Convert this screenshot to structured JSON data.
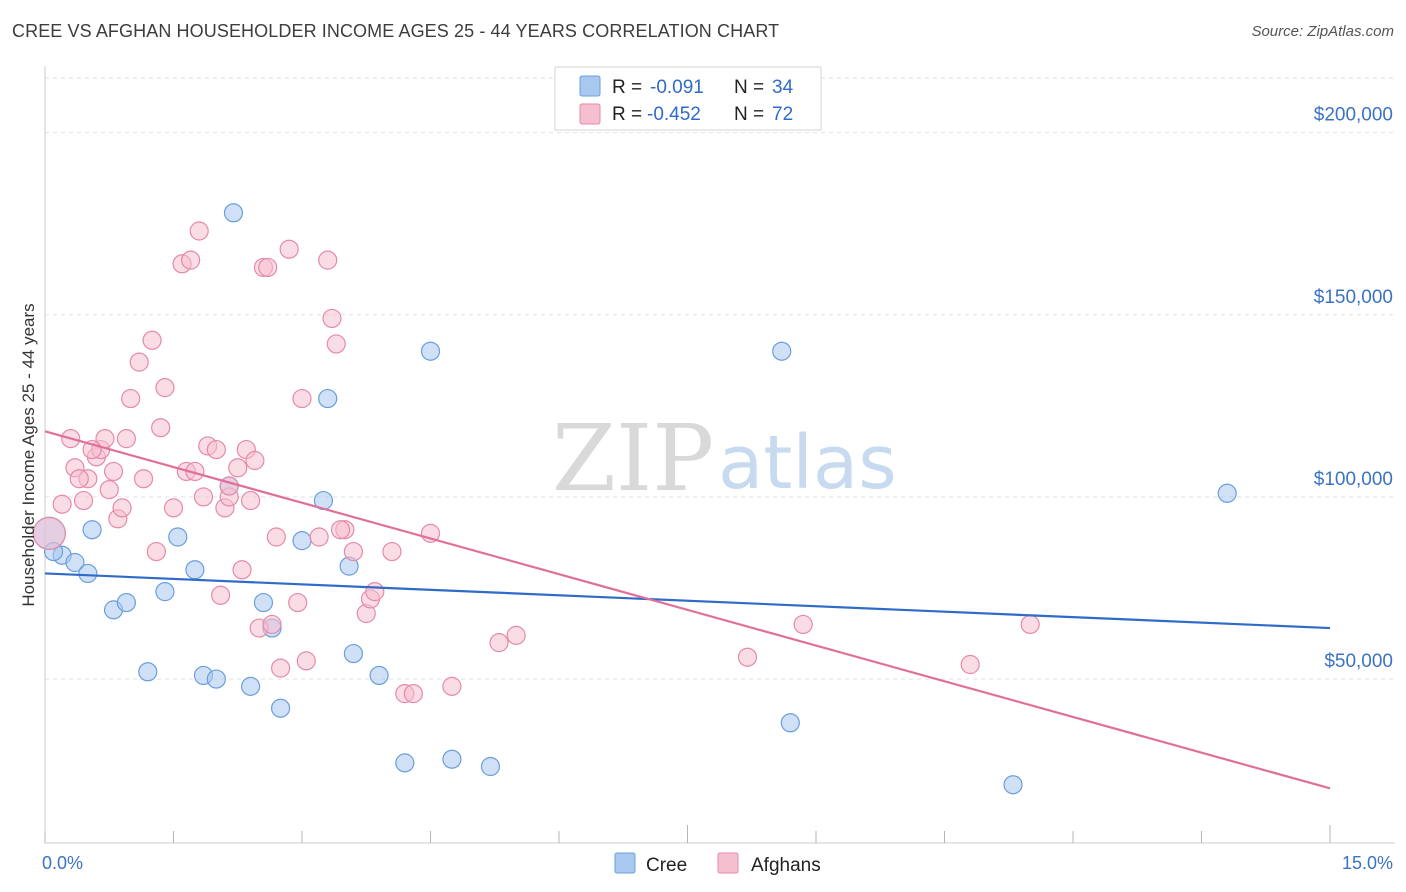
{
  "header": {
    "title": "CREE VS AFGHAN HOUSEHOLDER INCOME AGES 25 - 44 YEARS CORRELATION CHART",
    "source": "Source: ZipAtlas.com"
  },
  "watermark": {
    "zip": "ZIP",
    "atlas": "atlas"
  },
  "legend_top": {
    "rows": [
      {
        "r_label": "R =",
        "r_value": "-0.091",
        "n_label": "N =",
        "n_value": "34",
        "color": "#a9c8f0",
        "stroke": "#6a9edb"
      },
      {
        "r_label": "R =",
        "r_value": "-0.452",
        "n_label": "N =",
        "n_value": "72",
        "color": "#f6bfd0",
        "stroke": "#e58aa8"
      }
    ]
  },
  "legend_bottom": {
    "items": [
      {
        "label": "Cree",
        "color": "#a9c8f0",
        "stroke": "#6a9edb"
      },
      {
        "label": "Afghans",
        "color": "#f6bfd0",
        "stroke": "#e58aa8"
      }
    ]
  },
  "chart_data": {
    "type": "scatter",
    "title": "CREE VS AFGHAN HOUSEHOLDER INCOME AGES 25 - 44 YEARS CORRELATION CHART",
    "xlabel": "",
    "ylabel": "Householder Income Ages 25 - 44 years",
    "xlim": [
      0,
      15
    ],
    "ylim": [
      5000,
      215000
    ],
    "x_tick_labels": [
      "0.0%",
      "15.0%"
    ],
    "y_ticks": [
      50000,
      100000,
      150000,
      200000
    ],
    "y_tick_labels": [
      "$50,000",
      "$100,000",
      "$150,000",
      "$200,000"
    ],
    "grid": true,
    "legend_placement": "top-center and bottom",
    "series": [
      {
        "name": "Cree",
        "color": "#a9c8f0",
        "stroke": "#6a9edb",
        "line_color": "#2f6bc8",
        "trend": [
          [
            0,
            79000
          ],
          [
            15,
            64000
          ]
        ],
        "points": [
          [
            0.05,
            90000
          ],
          [
            0.2,
            84000
          ],
          [
            0.35,
            82000
          ],
          [
            0.5,
            79000
          ],
          [
            0.55,
            91000
          ],
          [
            0.8,
            69000
          ],
          [
            0.95,
            71000
          ],
          [
            1.2,
            52000
          ],
          [
            1.4,
            74000
          ],
          [
            1.55,
            89000
          ],
          [
            1.75,
            80000
          ],
          [
            1.85,
            51000
          ],
          [
            2.0,
            50000
          ],
          [
            2.15,
            103000
          ],
          [
            2.2,
            178000
          ],
          [
            2.4,
            48000
          ],
          [
            2.55,
            71000
          ],
          [
            2.65,
            64000
          ],
          [
            2.75,
            42000
          ],
          [
            3.0,
            88000
          ],
          [
            3.25,
            99000
          ],
          [
            3.3,
            127000
          ],
          [
            3.55,
            81000
          ],
          [
            3.6,
            57000
          ],
          [
            3.9,
            51000
          ],
          [
            4.2,
            27000
          ],
          [
            4.5,
            140000
          ],
          [
            4.75,
            28000
          ],
          [
            5.2,
            26000
          ],
          [
            8.6,
            140000
          ],
          [
            8.7,
            38000
          ],
          [
            11.3,
            21000
          ],
          [
            13.8,
            101000
          ],
          [
            0.1,
            85000
          ]
        ]
      },
      {
        "name": "Afghans",
        "color": "#f6bfd0",
        "stroke": "#e58aa8",
        "line_color": "#e0709a",
        "trend": [
          [
            0,
            118000
          ],
          [
            15,
            20000
          ]
        ],
        "points": [
          [
            0.05,
            90000
          ],
          [
            0.2,
            98000
          ],
          [
            0.3,
            116000
          ],
          [
            0.35,
            108000
          ],
          [
            0.45,
            99000
          ],
          [
            0.5,
            105000
          ],
          [
            0.6,
            111000
          ],
          [
            0.65,
            113000
          ],
          [
            0.7,
            116000
          ],
          [
            0.75,
            102000
          ],
          [
            0.8,
            107000
          ],
          [
            0.85,
            94000
          ],
          [
            0.9,
            97000
          ],
          [
            0.95,
            116000
          ],
          [
            1.0,
            127000
          ],
          [
            1.1,
            137000
          ],
          [
            1.15,
            105000
          ],
          [
            1.25,
            143000
          ],
          [
            1.3,
            85000
          ],
          [
            1.35,
            119000
          ],
          [
            1.4,
            130000
          ],
          [
            1.5,
            97000
          ],
          [
            1.6,
            164000
          ],
          [
            1.65,
            107000
          ],
          [
            1.7,
            165000
          ],
          [
            1.75,
            107000
          ],
          [
            1.8,
            173000
          ],
          [
            1.85,
            100000
          ],
          [
            1.9,
            114000
          ],
          [
            2.0,
            113000
          ],
          [
            2.05,
            73000
          ],
          [
            2.1,
            97000
          ],
          [
            2.15,
            100000
          ],
          [
            2.25,
            108000
          ],
          [
            2.3,
            80000
          ],
          [
            2.35,
            113000
          ],
          [
            2.4,
            99000
          ],
          [
            2.45,
            110000
          ],
          [
            2.5,
            64000
          ],
          [
            2.55,
            163000
          ],
          [
            2.6,
            163000
          ],
          [
            2.65,
            65000
          ],
          [
            2.7,
            89000
          ],
          [
            2.75,
            53000
          ],
          [
            2.85,
            168000
          ],
          [
            2.95,
            71000
          ],
          [
            3.0,
            127000
          ],
          [
            3.05,
            55000
          ],
          [
            3.2,
            89000
          ],
          [
            3.3,
            165000
          ],
          [
            3.35,
            149000
          ],
          [
            3.4,
            142000
          ],
          [
            3.5,
            91000
          ],
          [
            3.6,
            85000
          ],
          [
            3.75,
            68000
          ],
          [
            3.8,
            72000
          ],
          [
            3.85,
            74000
          ],
          [
            4.05,
            85000
          ],
          [
            4.2,
            46000
          ],
          [
            4.3,
            46000
          ],
          [
            4.5,
            90000
          ],
          [
            4.75,
            48000
          ],
          [
            5.3,
            60000
          ],
          [
            5.5,
            62000
          ],
          [
            8.2,
            56000
          ],
          [
            8.85,
            65000
          ],
          [
            10.8,
            54000
          ],
          [
            11.5,
            65000
          ],
          [
            0.4,
            105000
          ],
          [
            0.55,
            113000
          ],
          [
            2.15,
            103000
          ],
          [
            3.45,
            91000
          ]
        ]
      }
    ]
  }
}
